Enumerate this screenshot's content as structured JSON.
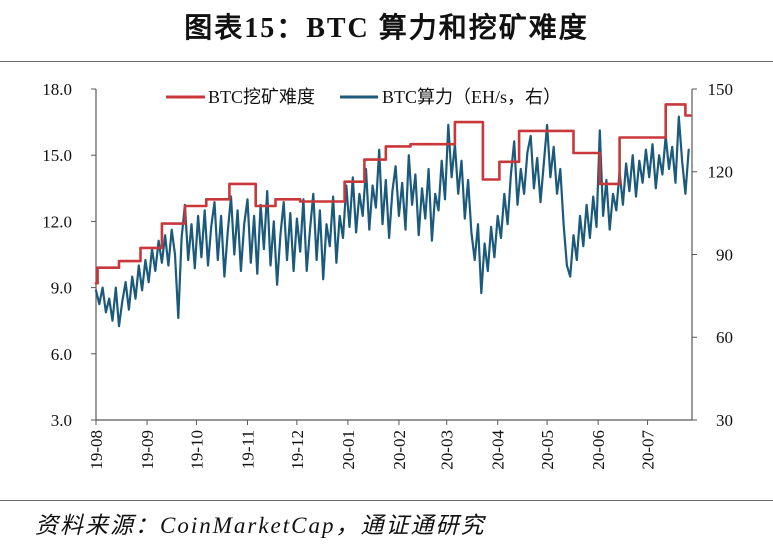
{
  "source": "资料来源：CoinMarketCap，通证通研究",
  "chart_data": {
    "type": "line",
    "title": "图表15：BTC 算力和挖矿难度",
    "x_ticks": [
      "19-08",
      "19-09",
      "19-10",
      "19-11",
      "19-12",
      "20-01",
      "20-02",
      "20-03",
      "20-04",
      "20-05",
      "20-06",
      "20-07"
    ],
    "y_ticks": [
      "3.0",
      "6.0",
      "9.0",
      "12.0",
      "15.0",
      "18.0"
    ],
    "y2_ticks": [
      "30",
      "60",
      "90",
      "120",
      "150"
    ],
    "xlim": [
      "2019-08-01",
      "2020-07-28"
    ],
    "ylim": [
      3,
      18
    ],
    "y2lim": [
      30,
      150
    ],
    "grid": false,
    "legend": "top-center",
    "axis_color": "#595959",
    "series": [
      {
        "name": "BTC挖矿难度",
        "axis": "left",
        "style": "step",
        "color": "#C8383B",
        "points": [
          [
            "2019-08-01",
            9.2
          ],
          [
            "2019-08-02",
            9.9
          ],
          [
            "2019-08-15",
            10.2
          ],
          [
            "2019-08-28",
            10.8
          ],
          [
            "2019-09-10",
            11.9
          ],
          [
            "2019-09-24",
            12.7
          ],
          [
            "2019-10-07",
            13.0
          ],
          [
            "2019-10-21",
            13.7
          ],
          [
            "2019-11-06",
            12.7
          ],
          [
            "2019-11-18",
            13.0
          ],
          [
            "2019-12-03",
            12.9
          ],
          [
            "2019-12-30",
            13.8
          ],
          [
            "2020-01-11",
            14.8
          ],
          [
            "2020-01-24",
            15.4
          ],
          [
            "2020-02-08",
            15.5
          ],
          [
            "2020-03-06",
            16.5
          ],
          [
            "2020-03-23",
            13.9
          ],
          [
            "2020-04-02",
            14.7
          ],
          [
            "2020-04-14",
            16.1
          ],
          [
            "2020-05-17",
            15.1
          ],
          [
            "2020-06-02",
            13.7
          ],
          [
            "2020-06-14",
            15.8
          ],
          [
            "2020-07-12",
            17.3
          ],
          [
            "2020-07-24",
            16.8
          ],
          [
            "2020-07-27",
            16.8
          ]
        ]
      },
      {
        "name": "BTC算力（EH/s，右）",
        "axis": "right",
        "style": "line",
        "color": "#1B5A7A",
        "points": [
          [
            "2019-08-01",
            77
          ],
          [
            "2019-08-03",
            72
          ],
          [
            "2019-08-05",
            78
          ],
          [
            "2019-08-07",
            69
          ],
          [
            "2019-08-09",
            74
          ],
          [
            "2019-08-11",
            66
          ],
          [
            "2019-08-13",
            78
          ],
          [
            "2019-08-15",
            64
          ],
          [
            "2019-08-17",
            73
          ],
          [
            "2019-08-19",
            80
          ],
          [
            "2019-08-21",
            70
          ],
          [
            "2019-08-23",
            82
          ],
          [
            "2019-08-25",
            74
          ],
          [
            "2019-08-27",
            86
          ],
          [
            "2019-08-29",
            77
          ],
          [
            "2019-08-31",
            88
          ],
          [
            "2019-09-02",
            80
          ],
          [
            "2019-09-04",
            92
          ],
          [
            "2019-09-06",
            84
          ],
          [
            "2019-09-08",
            95
          ],
          [
            "2019-09-10",
            87
          ],
          [
            "2019-09-12",
            97
          ],
          [
            "2019-09-14",
            86
          ],
          [
            "2019-09-16",
            99
          ],
          [
            "2019-09-18",
            90
          ],
          [
            "2019-09-20",
            67
          ],
          [
            "2019-09-22",
            96
          ],
          [
            "2019-09-24",
            108
          ],
          [
            "2019-09-26",
            88
          ],
          [
            "2019-09-28",
            101
          ],
          [
            "2019-09-30",
            85
          ],
          [
            "2019-10-02",
            104
          ],
          [
            "2019-10-04",
            89
          ],
          [
            "2019-10-06",
            106
          ],
          [
            "2019-10-08",
            86
          ],
          [
            "2019-10-10",
            100
          ],
          [
            "2019-10-12",
            109
          ],
          [
            "2019-10-14",
            88
          ],
          [
            "2019-10-16",
            104
          ],
          [
            "2019-10-18",
            82
          ],
          [
            "2019-10-20",
            98
          ],
          [
            "2019-10-22",
            111
          ],
          [
            "2019-10-24",
            90
          ],
          [
            "2019-10-26",
            106
          ],
          [
            "2019-10-28",
            84
          ],
          [
            "2019-10-30",
            101
          ],
          [
            "2019-11-01",
            110
          ],
          [
            "2019-11-03",
            87
          ],
          [
            "2019-11-05",
            104
          ],
          [
            "2019-11-07",
            83
          ],
          [
            "2019-11-09",
            108
          ],
          [
            "2019-11-11",
            92
          ],
          [
            "2019-11-13",
            113
          ],
          [
            "2019-11-15",
            86
          ],
          [
            "2019-11-17",
            102
          ],
          [
            "2019-11-19",
            79
          ],
          [
            "2019-11-21",
            97
          ],
          [
            "2019-11-23",
            109
          ],
          [
            "2019-11-25",
            88
          ],
          [
            "2019-11-27",
            105
          ],
          [
            "2019-11-29",
            84
          ],
          [
            "2019-12-01",
            103
          ],
          [
            "2019-12-03",
            91
          ],
          [
            "2019-12-05",
            110
          ],
          [
            "2019-12-07",
            84
          ],
          [
            "2019-12-09",
            99
          ],
          [
            "2019-12-11",
            112
          ],
          [
            "2019-12-13",
            88
          ],
          [
            "2019-12-15",
            106
          ],
          [
            "2019-12-17",
            81
          ],
          [
            "2019-12-19",
            101
          ],
          [
            "2019-12-21",
            93
          ],
          [
            "2019-12-23",
            111
          ],
          [
            "2019-12-25",
            87
          ],
          [
            "2019-12-27",
            104
          ],
          [
            "2019-12-29",
            96
          ],
          [
            "2019-12-31",
            115
          ],
          [
            "2020-01-02",
            100
          ],
          [
            "2020-01-04",
            118
          ],
          [
            "2020-01-06",
            98
          ],
          [
            "2020-01-08",
            112
          ],
          [
            "2020-01-10",
            104
          ],
          [
            "2020-01-12",
            121
          ],
          [
            "2020-01-14",
            99
          ],
          [
            "2020-01-16",
            115
          ],
          [
            "2020-01-18",
            107
          ],
          [
            "2020-01-20",
            128
          ],
          [
            "2020-01-22",
            101
          ],
          [
            "2020-01-24",
            117
          ],
          [
            "2020-01-26",
            96
          ],
          [
            "2020-01-28",
            113
          ],
          [
            "2020-01-30",
            122
          ],
          [
            "2020-02-01",
            104
          ],
          [
            "2020-02-03",
            116
          ],
          [
            "2020-02-05",
            99
          ],
          [
            "2020-02-07",
            126
          ],
          [
            "2020-02-09",
            108
          ],
          [
            "2020-02-11",
            119
          ],
          [
            "2020-02-13",
            97
          ],
          [
            "2020-02-15",
            114
          ],
          [
            "2020-02-17",
            103
          ],
          [
            "2020-02-19",
            121
          ],
          [
            "2020-02-21",
            95
          ],
          [
            "2020-02-23",
            112
          ],
          [
            "2020-02-25",
            106
          ],
          [
            "2020-02-27",
            124
          ],
          [
            "2020-02-29",
            110
          ],
          [
            "2020-03-02",
            137
          ],
          [
            "2020-03-04",
            118
          ],
          [
            "2020-03-06",
            130
          ],
          [
            "2020-03-08",
            112
          ],
          [
            "2020-03-10",
            124
          ],
          [
            "2020-03-12",
            103
          ],
          [
            "2020-03-14",
            117
          ],
          [
            "2020-03-16",
            98
          ],
          [
            "2020-03-18",
            88
          ],
          [
            "2020-03-20",
            101
          ],
          [
            "2020-03-22",
            76
          ],
          [
            "2020-03-24",
            94
          ],
          [
            "2020-03-26",
            84
          ],
          [
            "2020-03-28",
            100
          ],
          [
            "2020-03-30",
            89
          ],
          [
            "2020-04-01",
            104
          ],
          [
            "2020-04-03",
            96
          ],
          [
            "2020-04-05",
            112
          ],
          [
            "2020-04-07",
            101
          ],
          [
            "2020-04-09",
            119
          ],
          [
            "2020-04-11",
            131
          ],
          [
            "2020-04-13",
            108
          ],
          [
            "2020-04-15",
            121
          ],
          [
            "2020-04-17",
            112
          ],
          [
            "2020-04-19",
            127
          ],
          [
            "2020-04-21",
            133
          ],
          [
            "2020-04-23",
            114
          ],
          [
            "2020-04-25",
            125
          ],
          [
            "2020-04-27",
            109
          ],
          [
            "2020-04-29",
            123
          ],
          [
            "2020-05-01",
            137
          ],
          [
            "2020-05-03",
            118
          ],
          [
            "2020-05-05",
            129
          ],
          [
            "2020-05-07",
            112
          ],
          [
            "2020-05-09",
            121
          ],
          [
            "2020-05-11",
            101
          ],
          [
            "2020-05-13",
            86
          ],
          [
            "2020-05-15",
            82
          ],
          [
            "2020-05-17",
            97
          ],
          [
            "2020-05-19",
            88
          ],
          [
            "2020-05-21",
            104
          ],
          [
            "2020-05-23",
            93
          ],
          [
            "2020-05-25",
            108
          ],
          [
            "2020-05-27",
            96
          ],
          [
            "2020-05-29",
            111
          ],
          [
            "2020-05-31",
            100
          ],
          [
            "2020-06-02",
            135
          ],
          [
            "2020-06-04",
            104
          ],
          [
            "2020-06-06",
            117
          ],
          [
            "2020-06-08",
            99
          ],
          [
            "2020-06-10",
            112
          ],
          [
            "2020-06-12",
            106
          ],
          [
            "2020-06-14",
            120
          ],
          [
            "2020-06-16",
            108
          ],
          [
            "2020-06-18",
            123
          ],
          [
            "2020-06-20",
            113
          ],
          [
            "2020-06-22",
            126
          ],
          [
            "2020-06-24",
            111
          ],
          [
            "2020-06-26",
            124
          ],
          [
            "2020-06-28",
            116
          ],
          [
            "2020-06-30",
            128
          ],
          [
            "2020-07-02",
            118
          ],
          [
            "2020-07-04",
            130
          ],
          [
            "2020-07-06",
            114
          ],
          [
            "2020-07-08",
            126
          ],
          [
            "2020-07-10",
            119
          ],
          [
            "2020-07-12",
            133
          ],
          [
            "2020-07-14",
            121
          ],
          [
            "2020-07-16",
            129
          ],
          [
            "2020-07-18",
            116
          ],
          [
            "2020-07-20",
            140
          ],
          [
            "2020-07-22",
            124
          ],
          [
            "2020-07-24",
            112
          ],
          [
            "2020-07-26",
            128
          ]
        ]
      }
    ]
  }
}
